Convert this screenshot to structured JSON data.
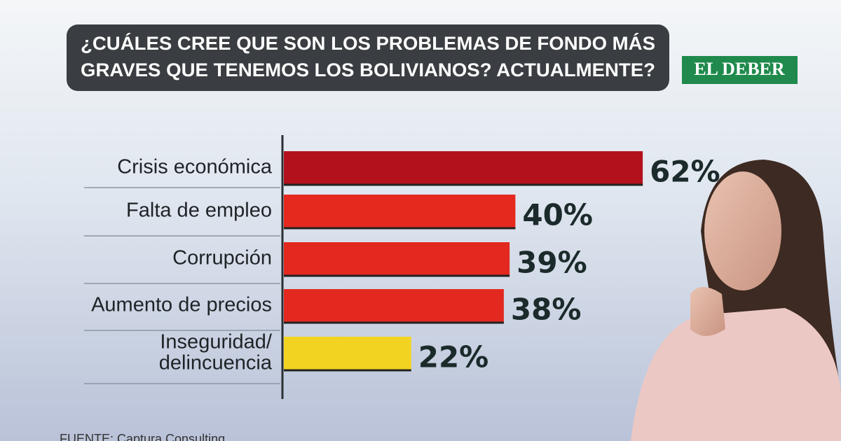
{
  "chart_data": {
    "type": "hbar",
    "title_lines": [
      "¿CUÁLES CREE QUE SON LOS PROBLEMAS DE FONDO MÁS",
      "GRAVES QUE TENEMOS LOS BOLIVIANOS? ACTUALMENTE?"
    ],
    "logo": "EL DEBER",
    "categories": [
      [
        "Crisis económica"
      ],
      [
        "Falta de empleo"
      ],
      [
        "Corrupción"
      ],
      [
        "Aumento de precios"
      ],
      [
        "Inseguridad/",
        "delincuencia"
      ]
    ],
    "values": [
      62,
      40,
      39,
      38,
      22
    ],
    "value_labels": [
      "62%",
      "40%",
      "39%",
      "38%",
      "22%"
    ],
    "colors": [
      "#b3121d",
      "#e6291f",
      "#e3291f",
      "#e3291f",
      "#f3d322"
    ],
    "source": "FUENTE: Captura Consulting"
  }
}
